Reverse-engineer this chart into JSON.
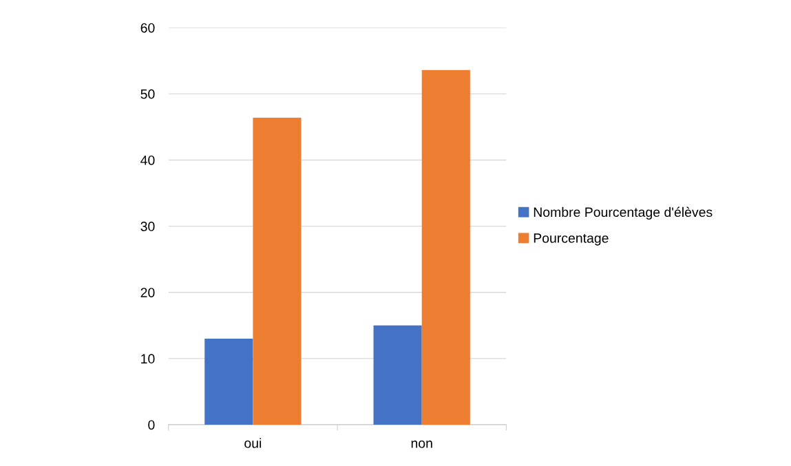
{
  "chart_data": {
    "type": "bar",
    "categories": [
      "oui",
      "non"
    ],
    "series": [
      {
        "name": "Nombre Pourcentage d'élèves",
        "color": "#4472c4",
        "values": [
          13,
          15
        ]
      },
      {
        "name": "Pourcentage",
        "color": "#ed7d31",
        "values": [
          46.4,
          53.6
        ]
      }
    ],
    "ylim": [
      0,
      60
    ],
    "yticks": [
      0,
      10,
      20,
      30,
      40,
      50,
      60
    ],
    "grid": "y",
    "legend": "right"
  }
}
